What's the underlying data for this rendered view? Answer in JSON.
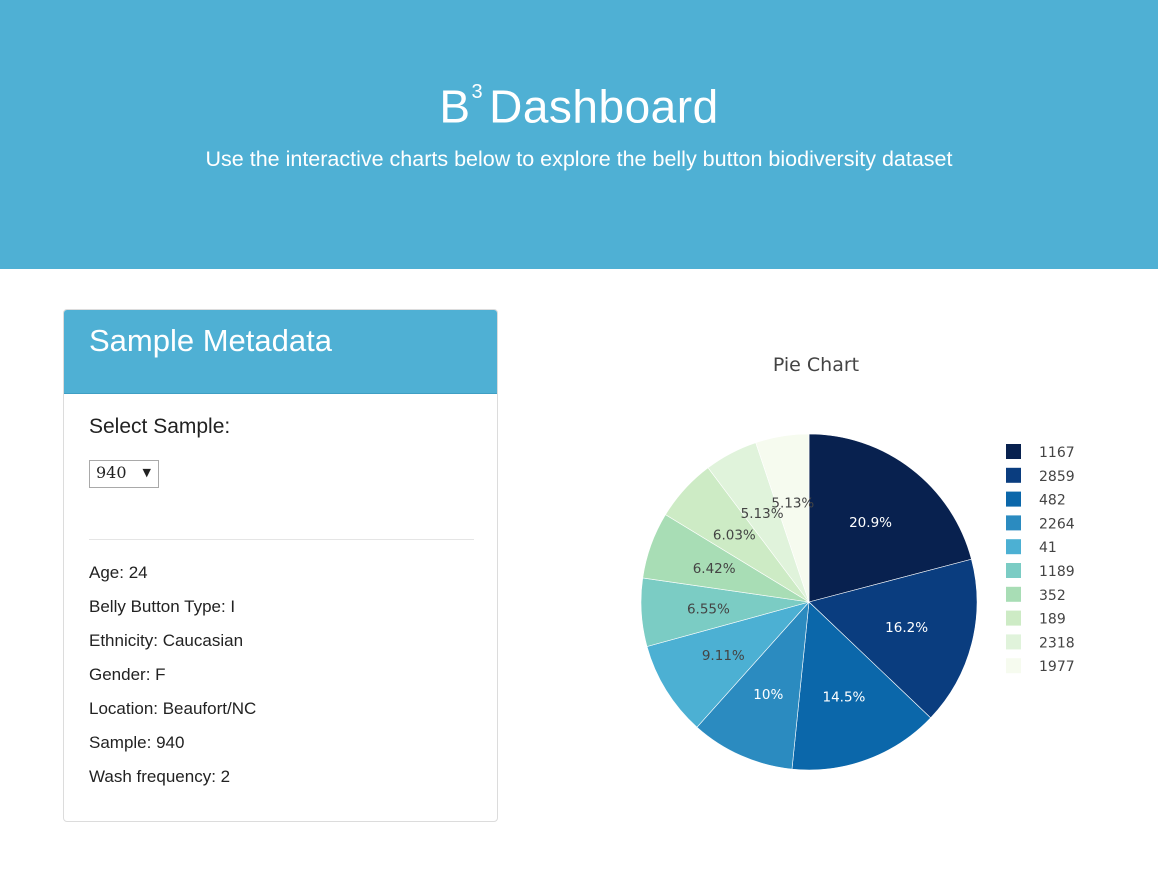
{
  "header": {
    "title_main": "B",
    "title_sup": "3",
    "title_rest": "Dashboard",
    "subtitle": "Use the interactive charts below to explore the belly button biodiversity dataset"
  },
  "metadata_panel": {
    "title": "Sample Metadata",
    "select_label": "Select Sample:",
    "select_value": "940",
    "items": [
      "Age: 24",
      "Belly Button Type: I",
      "Ethnicity: Caucasian",
      "Gender: F",
      "Location: Beaufort/NC",
      "Sample: 940",
      "Wash frequency: 2"
    ]
  },
  "colors": {
    "accent": "#4fb0d4"
  },
  "chart_data": {
    "type": "pie",
    "title": "Pie Chart",
    "labels": [
      "1167",
      "2859",
      "482",
      "2264",
      "41",
      "1189",
      "352",
      "189",
      "2318",
      "1977"
    ],
    "values": [
      20.9,
      16.2,
      14.5,
      10,
      9.11,
      6.55,
      6.42,
      6.03,
      5.13,
      5.13
    ],
    "text_labels": [
      "20.9%",
      "16.2%",
      "14.5%",
      "10%",
      "9.11%",
      "6.55%",
      "6.42%",
      "6.03%",
      "5.13%",
      "5.13%"
    ],
    "colors": [
      "#08214f",
      "#0a3d7f",
      "#0b67aa",
      "#2b8bc0",
      "#4cb0d3",
      "#7bccc4",
      "#a8ddb5",
      "#cdebc5",
      "#e0f3db",
      "#f6fbef"
    ],
    "label_colors": [
      "#ffffff",
      "#ffffff",
      "#ffffff",
      "#ffffff",
      "#444444",
      "#444444",
      "#444444",
      "#444444",
      "#444444",
      "#444444"
    ],
    "legend": "right"
  }
}
